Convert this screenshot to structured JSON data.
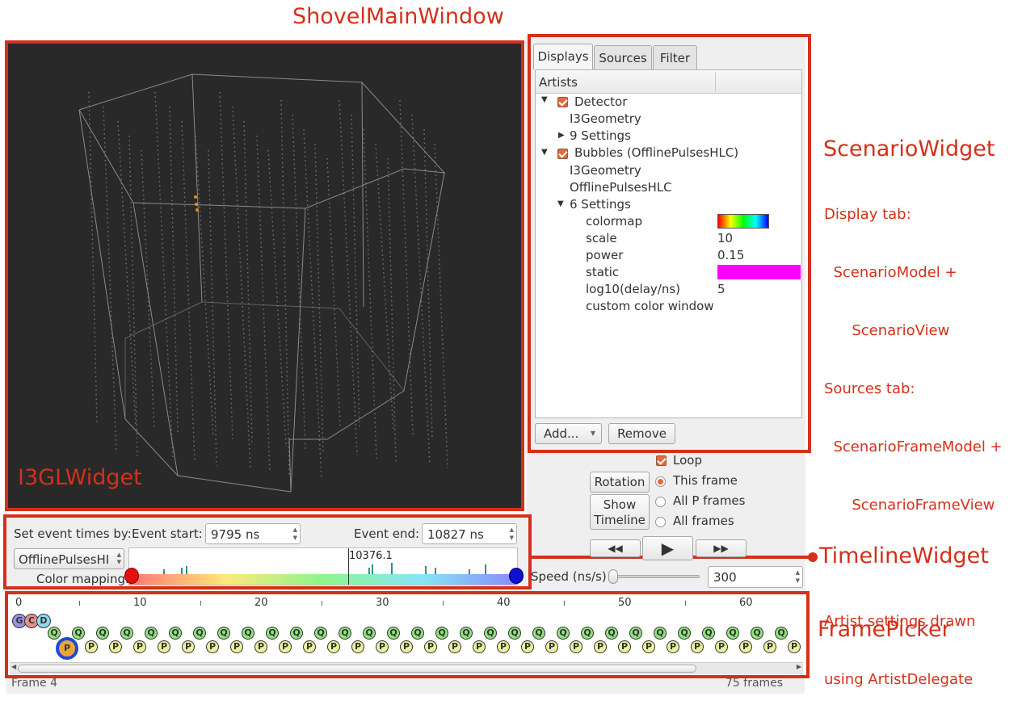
{
  "annotations": {
    "main_window": "ShovelMainWindow",
    "gl_widget": "I3GLWidget",
    "scenario_widget": "ScenarioWidget",
    "scenario_notes": [
      "Display tab:",
      "  ScenarioModel +",
      "      ScenarioView",
      "Sources tab:",
      "  ScenarioFrameModel +",
      "      ScenarioFrameView",
      "",
      "Artist settings drawn",
      "using ArtistDelegate"
    ],
    "timeline_widget": "TimelineWidget",
    "frame_picker": "FramePicker"
  },
  "tabs": [
    "Displays",
    "Sources",
    "Filter"
  ],
  "tree": {
    "header": "Artists",
    "detector": {
      "label": "Detector",
      "child1": "I3Geometry",
      "settings": "9 Settings"
    },
    "bubbles": {
      "label": "Bubbles (OfflinePulsesHLC)",
      "child1": "I3Geometry",
      "child2": "OfflinePulsesHLC",
      "settings": "6 Settings"
    },
    "settings": [
      {
        "name": "colormap",
        "value": ""
      },
      {
        "name": "scale",
        "value": "10"
      },
      {
        "name": "power",
        "value": "0.15"
      },
      {
        "name": "static",
        "value": ""
      },
      {
        "name": "log10(delay/ns)",
        "value": "5"
      },
      {
        "name": "custom color window",
        "value": ""
      }
    ],
    "static_color": "#ff00ff"
  },
  "buttons": {
    "add": "Add...",
    "remove": "Remove",
    "rotation": "Rotation",
    "show_timeline_1": "Show",
    "show_timeline_2": "Timeline"
  },
  "playback": {
    "loop": "Loop",
    "options": [
      "This frame",
      "All P frames",
      "All frames"
    ],
    "speed_label": "Speed (ns/s)",
    "speed_value": "300"
  },
  "timeline": {
    "set_times_label": "Set event times by:",
    "event_start_label": "Event start:",
    "event_start_value": "9795 ns",
    "event_end_label": "Event end:",
    "event_end_value": "10827 ns",
    "source_select": "OfflinePulsesHI",
    "color_mapping_label": "Color mapping:",
    "cursor_value": "10376.1"
  },
  "frame_picker": {
    "tick_labels": [
      "0",
      "10",
      "20",
      "30",
      "40",
      "50",
      "60"
    ],
    "g_label": "G",
    "c_label": "C",
    "d_label": "D",
    "q_label": "Q",
    "p_label": "P",
    "status_left": "Frame 4",
    "status_right": "75 frames"
  }
}
